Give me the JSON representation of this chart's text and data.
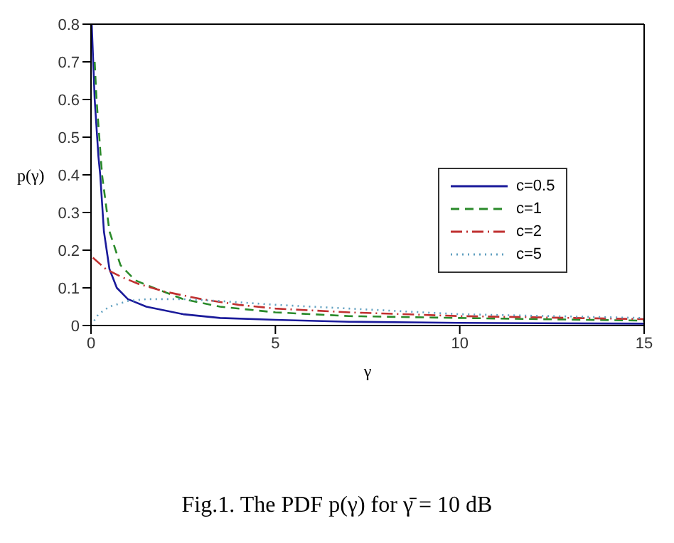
{
  "chart_data": {
    "type": "line",
    "xlabel": "γ",
    "ylabel": "p(γ)",
    "xlim": [
      0,
      15
    ],
    "ylim": [
      0,
      0.8
    ],
    "xticks": [
      0,
      5,
      10,
      15
    ],
    "yticks": [
      0,
      0.1,
      0.2,
      0.3,
      0.4,
      0.5,
      0.6,
      0.7,
      0.8
    ],
    "legend": "right",
    "marker": "none",
    "series": [
      {
        "name": "c=0.5",
        "color": "#1a1a9a",
        "line_style": "solid",
        "x": [
          0.02,
          0.1,
          0.2,
          0.25,
          0.35,
          0.5,
          0.7,
          1,
          1.5,
          2.5,
          3.5,
          5,
          7,
          10,
          15
        ],
        "values": [
          0.8,
          0.6,
          0.45,
          0.4,
          0.25,
          0.15,
          0.1,
          0.07,
          0.05,
          0.03,
          0.02,
          0.015,
          0.01,
          0.007,
          0.005
        ]
      },
      {
        "name": "c=1",
        "color": "#2a8a2a",
        "line_style": "dashed",
        "x": [
          0.1,
          0.15,
          0.3,
          0.5,
          0.8,
          1.2,
          1.7,
          2.5,
          3.5,
          5,
          7,
          10,
          15
        ],
        "values": [
          0.7,
          0.6,
          0.4,
          0.25,
          0.16,
          0.12,
          0.1,
          0.07,
          0.05,
          0.035,
          0.025,
          0.02,
          0.013
        ]
      },
      {
        "name": "c=2",
        "color": "#c03030",
        "line_style": "dashdot",
        "x": [
          0.05,
          0.4,
          0.8,
          1.3,
          2,
          3,
          4,
          5,
          7,
          10,
          15
        ],
        "values": [
          0.18,
          0.15,
          0.13,
          0.11,
          0.09,
          0.07,
          0.055,
          0.045,
          0.035,
          0.025,
          0.017
        ]
      },
      {
        "name": "c=5",
        "color": "#60a0c0",
        "line_style": "dotted",
        "x": [
          0,
          0.2,
          0.5,
          1,
          1.5,
          2.5,
          3.5,
          5,
          7,
          10,
          15
        ],
        "values": [
          0,
          0.03,
          0.05,
          0.065,
          0.07,
          0.07,
          0.065,
          0.055,
          0.045,
          0.03,
          0.02
        ]
      }
    ],
    "annotations": [
      "Fig.1. The PDF p(γ) for γ̄ = 10 dB"
    ]
  }
}
